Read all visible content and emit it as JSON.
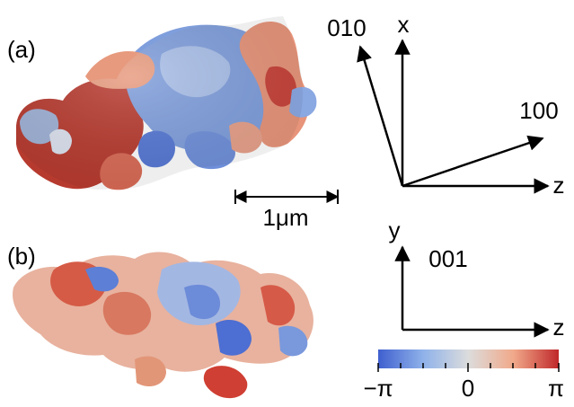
{
  "panels": {
    "a": {
      "label": "(a)"
    },
    "b": {
      "label": "(b)"
    }
  },
  "scale_bar": {
    "label": "1μm"
  },
  "axes_top": {
    "x_label": "x",
    "z_label": "z",
    "dir_010": "010",
    "dir_100": "100"
  },
  "axes_bottom": {
    "y_label": "y",
    "z_label": "z",
    "dir_001": "001"
  },
  "colorbar": {
    "min_label": "−π",
    "mid_label": "0",
    "max_label": "π",
    "colors": [
      "#3f5fcf",
      "#8fb2ea",
      "#dcdcdc",
      "#f1a98a",
      "#c0282a"
    ]
  }
}
